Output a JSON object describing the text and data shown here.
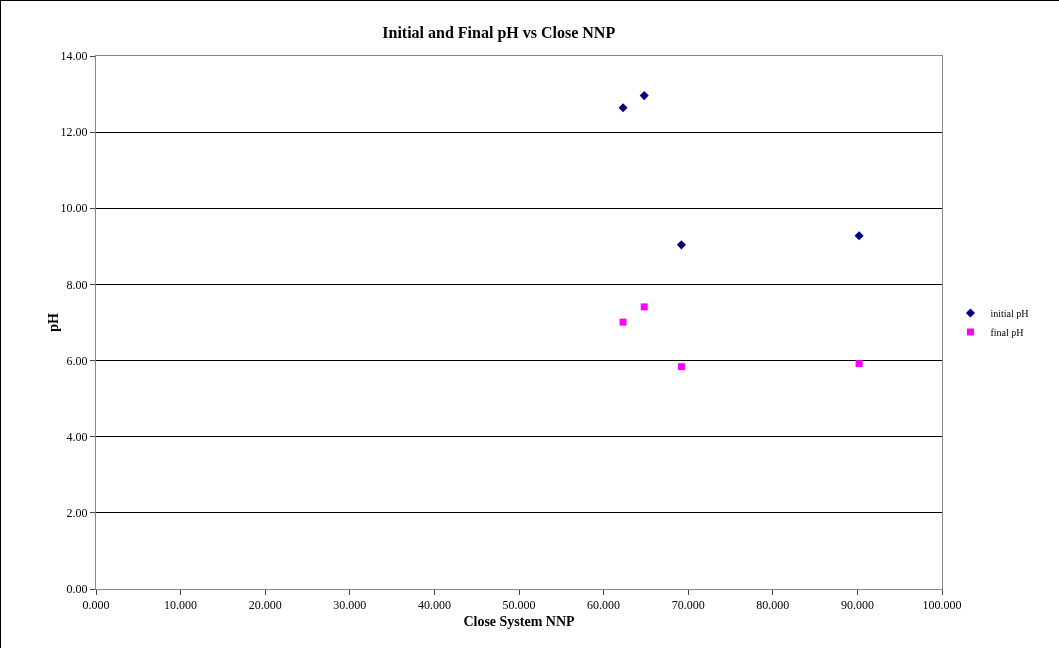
{
  "chart_data": {
    "type": "scatter",
    "title": "Initial and Final pH vs Close NNP",
    "xlabel": "Close System NNP",
    "ylabel": "pH",
    "xlim": [
      0,
      100
    ],
    "xticks": [
      {
        "value": 0,
        "label": "0.000"
      },
      {
        "value": 10,
        "label": "10.000"
      },
      {
        "value": 20,
        "label": "20.000"
      },
      {
        "value": 30,
        "label": "30.000"
      },
      {
        "value": 40,
        "label": "40.000"
      },
      {
        "value": 50,
        "label": "50.000"
      },
      {
        "value": 60,
        "label": "60.000"
      },
      {
        "value": 70,
        "label": "70.000"
      },
      {
        "value": 80,
        "label": "80.000"
      },
      {
        "value": 90,
        "label": "90.000"
      },
      {
        "value": 100,
        "label": "100.000"
      }
    ],
    "ylim": [
      0,
      14
    ],
    "yticks": [
      {
        "value": 0,
        "label": "0.00"
      },
      {
        "value": 2,
        "label": "2.00"
      },
      {
        "value": 4,
        "label": "4.00"
      },
      {
        "value": 6,
        "label": "6.00"
      },
      {
        "value": 8,
        "label": "8.00"
      },
      {
        "value": 10,
        "label": "10.00"
      },
      {
        "value": 12,
        "label": "12.00"
      },
      {
        "value": 14,
        "label": "14.00"
      }
    ],
    "grid": "y",
    "legend": "right",
    "series": [
      {
        "name": "initial pH",
        "color": "#000080",
        "marker": "diamond",
        "x": [
          62.3,
          64.8,
          69.2,
          90.2
        ],
        "values": [
          12.64,
          12.96,
          9.04,
          9.28
        ]
      },
      {
        "name": "final pH",
        "color": "#ff00ff",
        "marker": "square",
        "x": [
          62.3,
          64.8,
          69.2,
          90.2
        ],
        "values": [
          7.01,
          7.41,
          5.84,
          5.92
        ]
      }
    ]
  }
}
